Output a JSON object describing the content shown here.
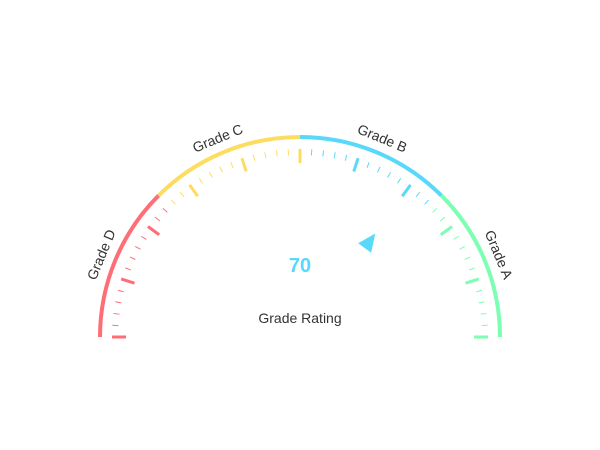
{
  "chart_data": {
    "type": "gauge",
    "title": "",
    "name": "Grade Rating",
    "value": 70,
    "min": 0,
    "max": 100,
    "bands": [
      {
        "label": "Grade D",
        "from": 0,
        "to": 25,
        "color": "#FF6E76"
      },
      {
        "label": "Grade C",
        "from": 25,
        "to": 50,
        "color": "#FDDD60"
      },
      {
        "label": "Grade B",
        "from": 50,
        "to": 75,
        "color": "#58D9F9"
      },
      {
        "label": "Grade A",
        "from": 75,
        "to": 100,
        "color": "#7CFFB2"
      }
    ],
    "major_ticks": [
      0,
      10,
      20,
      30,
      40,
      50,
      60,
      70,
      80,
      90,
      100
    ],
    "minor_ticks_per_major": 5,
    "pointer_color": "#58D9F9"
  }
}
